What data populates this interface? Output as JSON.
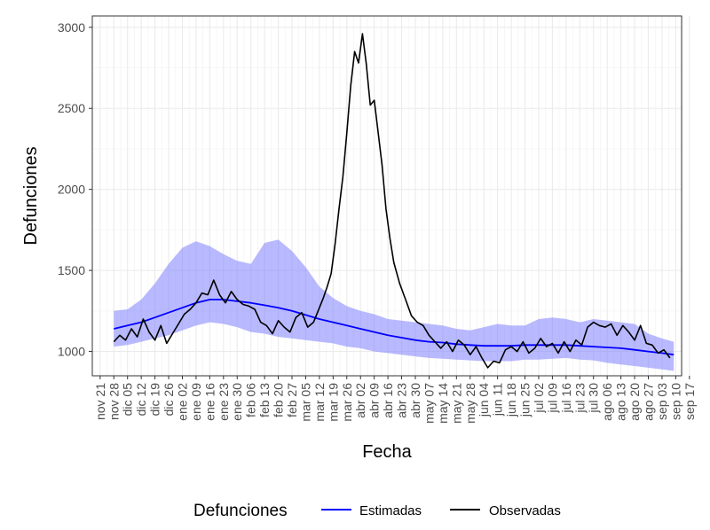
{
  "chart_data": {
    "type": "line",
    "xlabel": "Fecha",
    "ylabel": "Defunciones",
    "ylim": [
      850,
      3070
    ],
    "yticks": [
      1000,
      1500,
      2000,
      2500,
      3000
    ],
    "grid": true,
    "legend": {
      "title": "Defunciones",
      "position": "bottom",
      "entries": [
        {
          "label": "Estimadas",
          "color": "#0000ff"
        },
        {
          "label": "Observadas",
          "color": "#000000"
        }
      ]
    },
    "x_range_days": [
      -4,
      297
    ],
    "x_ticks": [
      {
        "day": 0,
        "label": "nov 21"
      },
      {
        "day": 7,
        "label": "nov 28"
      },
      {
        "day": 14,
        "label": "dic 05"
      },
      {
        "day": 21,
        "label": "dic 12"
      },
      {
        "day": 28,
        "label": "dic 19"
      },
      {
        "day": 35,
        "label": "dic 26"
      },
      {
        "day": 42,
        "label": "ene 02"
      },
      {
        "day": 49,
        "label": "ene 09"
      },
      {
        "day": 56,
        "label": "ene 16"
      },
      {
        "day": 63,
        "label": "ene 23"
      },
      {
        "day": 70,
        "label": "ene 30"
      },
      {
        "day": 77,
        "label": "feb 06"
      },
      {
        "day": 84,
        "label": "feb 13"
      },
      {
        "day": 91,
        "label": "feb 20"
      },
      {
        "day": 98,
        "label": "feb 27"
      },
      {
        "day": 105,
        "label": "mar 05"
      },
      {
        "day": 112,
        "label": "mar 12"
      },
      {
        "day": 119,
        "label": "mar 19"
      },
      {
        "day": 126,
        "label": "mar 26"
      },
      {
        "day": 133,
        "label": "abr 02"
      },
      {
        "day": 140,
        "label": "abr 09"
      },
      {
        "day": 147,
        "label": "abr 16"
      },
      {
        "day": 154,
        "label": "abr 23"
      },
      {
        "day": 161,
        "label": "abr 30"
      },
      {
        "day": 168,
        "label": "may 07"
      },
      {
        "day": 175,
        "label": "may 14"
      },
      {
        "day": 182,
        "label": "may 21"
      },
      {
        "day": 189,
        "label": "may 28"
      },
      {
        "day": 196,
        "label": "jun 04"
      },
      {
        "day": 203,
        "label": "jun 11"
      },
      {
        "day": 210,
        "label": "jun 18"
      },
      {
        "day": 217,
        "label": "jun 25"
      },
      {
        "day": 224,
        "label": "jul 02"
      },
      {
        "day": 231,
        "label": "jul 09"
      },
      {
        "day": 238,
        "label": "jul 16"
      },
      {
        "day": 245,
        "label": "jul 23"
      },
      {
        "day": 252,
        "label": "jul 30"
      },
      {
        "day": 259,
        "label": "ago 06"
      },
      {
        "day": 266,
        "label": "ago 13"
      },
      {
        "day": 273,
        "label": "ago 20"
      },
      {
        "day": 280,
        "label": "ago 27"
      },
      {
        "day": 287,
        "label": "sep 03"
      },
      {
        "day": 294,
        "label": "sep 10"
      },
      {
        "day": 301,
        "label": "sep 17"
      }
    ],
    "series": [
      {
        "name": "Estimadas",
        "color": "#0000ff",
        "day": [
          7,
          14,
          21,
          28,
          35,
          42,
          49,
          56,
          63,
          70,
          77,
          84,
          91,
          98,
          105,
          112,
          119,
          126,
          133,
          140,
          147,
          154,
          161,
          168,
          175,
          182,
          189,
          196,
          203,
          210,
          217,
          224,
          231,
          238,
          245,
          252,
          259,
          266,
          273,
          280,
          287,
          293
        ],
        "values": [
          1140,
          1160,
          1180,
          1210,
          1240,
          1270,
          1300,
          1320,
          1320,
          1310,
          1300,
          1285,
          1270,
          1250,
          1225,
          1200,
          1180,
          1160,
          1140,
          1120,
          1100,
          1085,
          1070,
          1060,
          1055,
          1045,
          1040,
          1035,
          1035,
          1035,
          1040,
          1040,
          1040,
          1040,
          1035,
          1030,
          1025,
          1020,
          1010,
          1000,
          990,
          980
        ]
      },
      {
        "name": "Estimadas (intervalo)",
        "color": "#8080ff",
        "day": [
          7,
          14,
          21,
          28,
          35,
          42,
          49,
          56,
          63,
          70,
          77,
          84,
          91,
          98,
          105,
          112,
          119,
          126,
          133,
          140,
          147,
          154,
          161,
          168,
          175,
          182,
          189,
          196,
          203,
          210,
          217,
          224,
          231,
          238,
          245,
          252,
          259,
          266,
          273,
          280,
          287,
          293
        ],
        "lower": [
          1030,
          1040,
          1060,
          1080,
          1100,
          1130,
          1160,
          1180,
          1170,
          1150,
          1120,
          1110,
          1090,
          1080,
          1070,
          1060,
          1050,
          1030,
          1020,
          1000,
          990,
          980,
          970,
          960,
          955,
          950,
          945,
          940,
          940,
          940,
          950,
          950,
          955,
          960,
          950,
          945,
          930,
          920,
          910,
          900,
          890,
          880
        ],
        "upper": [
          1250,
          1260,
          1320,
          1420,
          1540,
          1640,
          1680,
          1650,
          1600,
          1560,
          1540,
          1670,
          1690,
          1620,
          1520,
          1400,
          1330,
          1280,
          1250,
          1230,
          1200,
          1190,
          1180,
          1170,
          1160,
          1140,
          1130,
          1150,
          1170,
          1160,
          1160,
          1200,
          1210,
          1200,
          1180,
          1200,
          1190,
          1180,
          1170,
          1110,
          1080,
          1060
        ]
      },
      {
        "name": "Observadas",
        "color": "#000000",
        "day": [
          7,
          10,
          13,
          16,
          19,
          22,
          25,
          28,
          31,
          34,
          37,
          40,
          43,
          46,
          49,
          52,
          55,
          58,
          61,
          64,
          67,
          70,
          73,
          76,
          79,
          82,
          85,
          88,
          91,
          94,
          97,
          100,
          103,
          106,
          109,
          112,
          114,
          116,
          118,
          120,
          122,
          124,
          126,
          128,
          130,
          132,
          134,
          136,
          138,
          140,
          142,
          144,
          146,
          148,
          150,
          153,
          156,
          159,
          162,
          165,
          168,
          171,
          174,
          177,
          180,
          183,
          186,
          189,
          192,
          195,
          198,
          201,
          204,
          207,
          210,
          213,
          216,
          219,
          222,
          225,
          228,
          231,
          234,
          237,
          240,
          243,
          246,
          249,
          252,
          255,
          258,
          261,
          264,
          267,
          270,
          273,
          276,
          279,
          282,
          285,
          288,
          291
        ],
        "values": [
          1060,
          1100,
          1070,
          1140,
          1090,
          1200,
          1120,
          1070,
          1160,
          1050,
          1110,
          1170,
          1230,
          1260,
          1300,
          1360,
          1350,
          1440,
          1350,
          1300,
          1370,
          1320,
          1290,
          1280,
          1260,
          1180,
          1160,
          1110,
          1190,
          1150,
          1120,
          1210,
          1240,
          1150,
          1180,
          1270,
          1330,
          1400,
          1480,
          1660,
          1880,
          2080,
          2350,
          2640,
          2850,
          2780,
          2960,
          2770,
          2520,
          2550,
          2350,
          2150,
          1880,
          1700,
          1550,
          1420,
          1320,
          1220,
          1180,
          1160,
          1100,
          1060,
          1020,
          1060,
          1000,
          1070,
          1040,
          980,
          1030,
          960,
          900,
          940,
          930,
          1010,
          1030,
          1000,
          1060,
          990,
          1020,
          1080,
          1030,
          1050,
          990,
          1060,
          1000,
          1070,
          1040,
          1150,
          1180,
          1160,
          1150,
          1170,
          1100,
          1160,
          1120,
          1070,
          1160,
          1050,
          1040,
          990,
          1010,
          960
        ]
      }
    ]
  }
}
